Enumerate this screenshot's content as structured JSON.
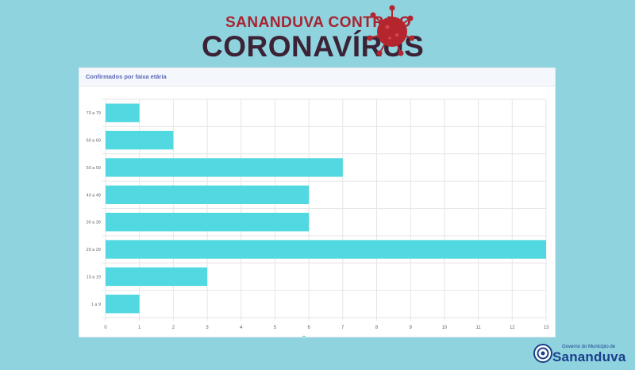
{
  "header": {
    "line1": "SANANDUVA CONTRA O",
    "line2": "CORONAVÍRUS"
  },
  "card": {
    "title": "Confirmados por faixa etária"
  },
  "chart_data": {
    "type": "bar",
    "orientation": "horizontal",
    "title": "",
    "categories": [
      "70 a 79",
      "60 a 69",
      "50 a 59",
      "40 a 49",
      "30 a 39",
      "20 a 29",
      "10 a 19",
      "1 a 9"
    ],
    "series": [
      {
        "name": "Confirmados",
        "values": [
          1,
          2,
          7,
          6,
          6,
          13,
          3,
          1
        ],
        "color": "#51d8e0"
      }
    ],
    "xlim": [
      0,
      13
    ],
    "xticks": [
      0,
      1,
      2,
      3,
      4,
      5,
      6,
      7,
      8,
      9,
      10,
      11,
      12,
      13
    ],
    "grid": true,
    "legend": "bottom"
  },
  "footer": {
    "gov_top": "Governo do Município de",
    "gov_name": "Sananduva"
  },
  "colors": {
    "background": "#8fd3df",
    "bar": "#51d8e0",
    "title_red": "#a8232f",
    "title_dark": "#3b2235",
    "logo_blue": "#1a3f8a"
  }
}
